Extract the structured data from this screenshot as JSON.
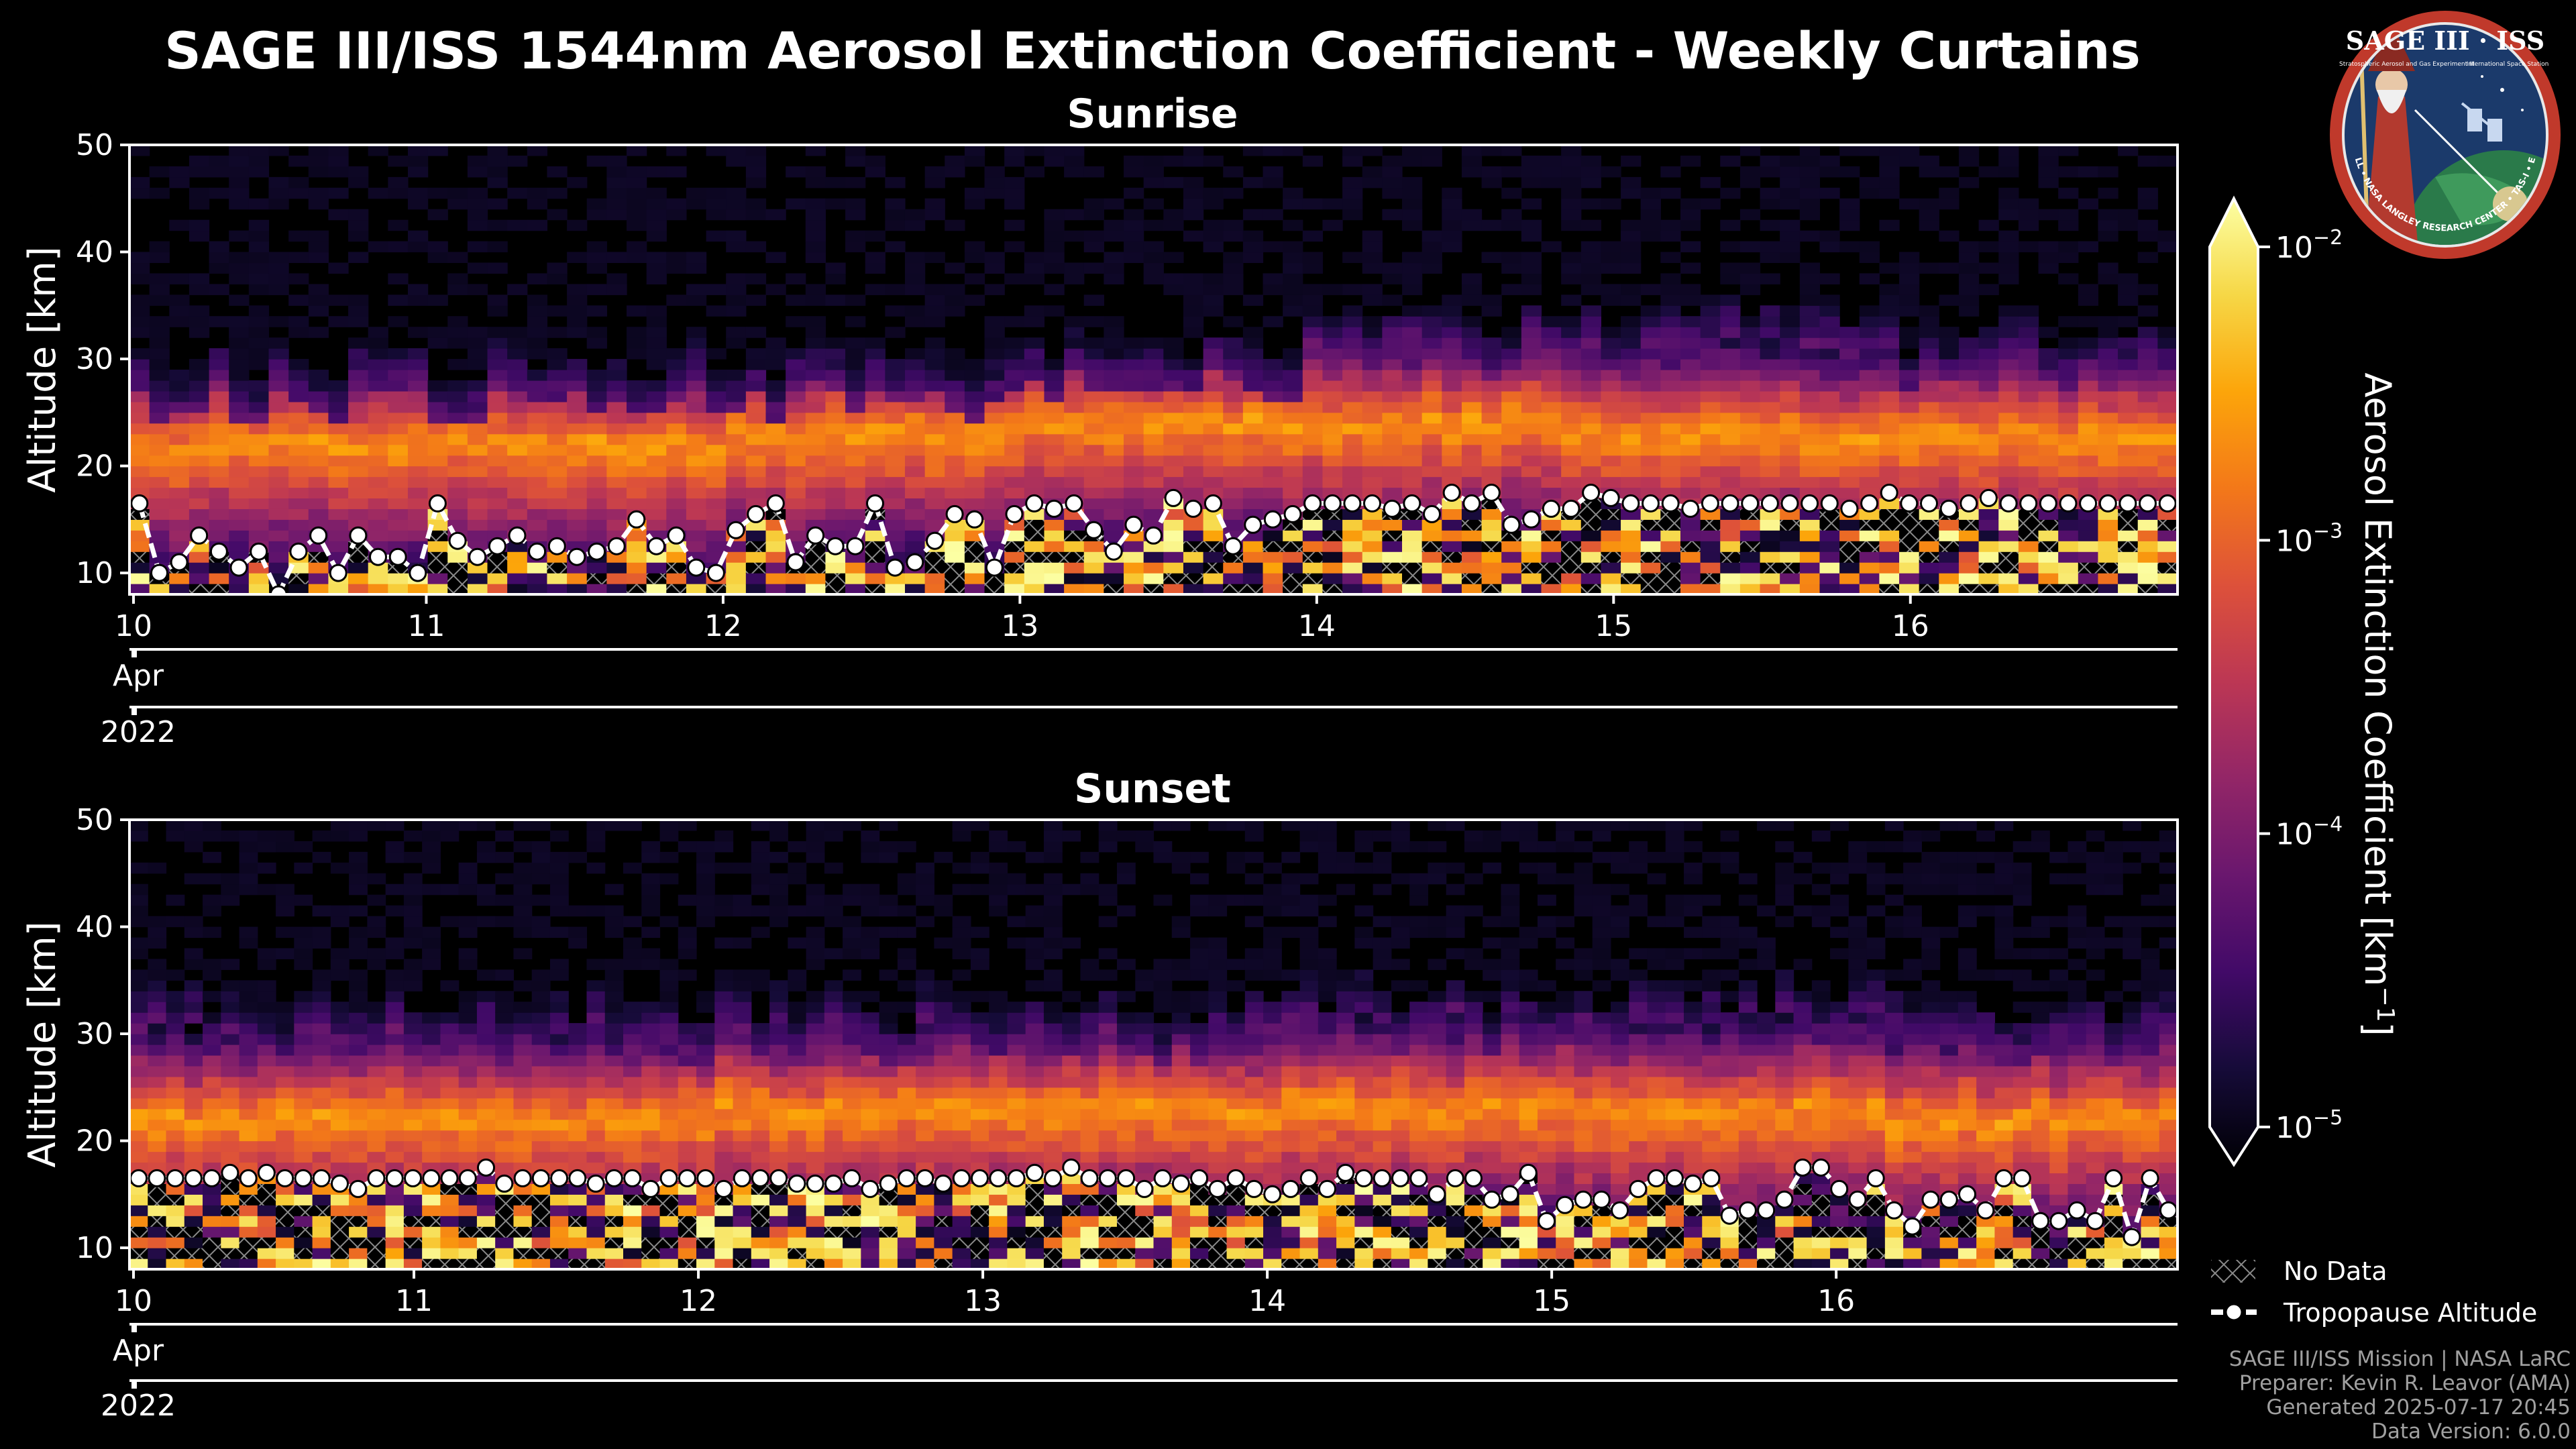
{
  "chart_data": {
    "type": "heatmap",
    "title": "SAGE III/ISS 1544nm Aerosol Extinction Coefficient - Weekly Curtains",
    "panels": [
      {
        "title": "Sunrise",
        "ylabel": "Altitude [km]",
        "ylim": [
          8,
          50
        ],
        "yticks": [
          10,
          20,
          30,
          40,
          50
        ],
        "xlim": [
          10,
          16.9
        ],
        "xticks": [
          {
            "value": 10,
            "label": "10"
          },
          {
            "value": 11,
            "label": "11"
          },
          {
            "value": 12,
            "label": "12"
          },
          {
            "value": 13,
            "label": "13"
          },
          {
            "value": 14,
            "label": "14"
          },
          {
            "value": 15,
            "label": "15"
          },
          {
            "value": 16,
            "label": "16"
          }
        ],
        "month_label": "Apr",
        "year_label": "2022",
        "aerosol_layer": {
          "top_km": [
            26,
            26,
            26,
            28,
            30,
            30,
            29
          ],
          "peak_km": [
            22,
            22,
            23,
            24,
            24,
            23,
            23
          ],
          "note": "per day 10..16"
        },
        "tropopause_altitude_km": [
          16.5,
          10,
          11,
          13.5,
          12,
          10.5,
          12,
          8,
          12,
          13.5,
          10,
          13.5,
          11.5,
          11.5,
          10,
          16.5,
          13,
          11.5,
          12.5,
          13.5,
          12,
          12.5,
          11.5,
          12,
          12.5,
          15,
          12.5,
          13.5,
          10.5,
          10,
          14,
          15.5,
          16.5,
          11,
          13.5,
          12.5,
          12.5,
          16.5,
          10.5,
          11,
          13,
          15.5,
          15,
          10.5,
          15.5,
          16.5,
          16,
          16.5,
          14,
          12,
          14.5,
          13.5,
          17,
          16,
          16.5,
          12.5,
          14.5,
          15,
          15.5,
          16.5,
          16.5,
          16.5,
          16.5,
          16,
          16.5,
          15.5,
          17.5,
          16.5,
          17.5,
          14.5,
          15,
          16,
          16,
          17.5,
          17,
          16.5,
          16.5,
          16.5,
          16,
          16.5,
          16.5,
          16.5,
          16.5,
          16.5,
          16.5,
          16.5,
          16,
          16.5,
          17.5,
          16.5,
          16.5,
          16,
          16.5,
          17,
          16.5,
          16.5,
          16.5,
          16.5,
          16.5,
          16.5,
          16.5,
          16.5,
          16.5
        ]
      },
      {
        "title": "Sunset",
        "ylabel": "Altitude [km]",
        "ylim": [
          8,
          50
        ],
        "yticks": [
          10,
          20,
          30,
          40,
          50
        ],
        "xlim": [
          10,
          17.2
        ],
        "xticks": [
          {
            "value": 10,
            "label": "10"
          },
          {
            "value": 11,
            "label": "11"
          },
          {
            "value": 12,
            "label": "12"
          },
          {
            "value": 13,
            "label": "13"
          },
          {
            "value": 14,
            "label": "14"
          },
          {
            "value": 15,
            "label": "15"
          },
          {
            "value": 16,
            "label": "16"
          }
        ],
        "month_label": "Apr",
        "year_label": "2022",
        "aerosol_layer": {
          "top_km": [
            29,
            29,
            29,
            29,
            30,
            30,
            29
          ],
          "peak_km": [
            22,
            22,
            23,
            23,
            23,
            23,
            22
          ],
          "note": "per day 10..16"
        },
        "tropopause_altitude_km": [
          16.5,
          16.5,
          16.5,
          16.5,
          16.5,
          17,
          16.5,
          17,
          16.5,
          16.5,
          16.5,
          16,
          15.5,
          16.5,
          16.5,
          16.5,
          16.5,
          16.5,
          16.5,
          17.5,
          16,
          16.5,
          16.5,
          16.5,
          16.5,
          16,
          16.5,
          16.5,
          15.5,
          16.5,
          16.5,
          16.5,
          15.5,
          16.5,
          16.5,
          16.5,
          16,
          16,
          16,
          16.5,
          15.5,
          16,
          16.5,
          16.5,
          16,
          16.5,
          16.5,
          16.5,
          16.5,
          17,
          16.5,
          17.5,
          16.5,
          16.5,
          16.5,
          15.5,
          16.5,
          16,
          16.5,
          15.5,
          16.5,
          15.5,
          15,
          15.5,
          16.5,
          15.5,
          17,
          16.5,
          16.5,
          16.5,
          16.5,
          15,
          16.5,
          16.5,
          14.5,
          15,
          17,
          12.5,
          14,
          14.5,
          14.5,
          13.5,
          15.5,
          16.5,
          16.5,
          16,
          16.5,
          13,
          13.5,
          13.5,
          14.5,
          17.5,
          17.5,
          15.5,
          14.5,
          16.5,
          13.5,
          12,
          14.5,
          14.5,
          15,
          13.5,
          16.5,
          16.5,
          12.5,
          12.5,
          13.5,
          12.5,
          16.5,
          11,
          16.5,
          13.5
        ]
      }
    ],
    "colorbar": {
      "label": "Aerosol Extinction Coefficient [km",
      "label_exponent": "−1",
      "label_close": "]",
      "scale": "log",
      "range": [
        1e-05,
        0.01
      ],
      "colormap": "inferno",
      "ticks": [
        {
          "value": 0.01,
          "base": "10",
          "exp": "−2"
        },
        {
          "value": 0.001,
          "base": "10",
          "exp": "−3"
        },
        {
          "value": 0.0001,
          "base": "10",
          "exp": "−4"
        },
        {
          "value": 1e-05,
          "base": "10",
          "exp": "−5"
        }
      ],
      "extend": "both"
    },
    "legend": {
      "position": "lower-right",
      "entries": [
        {
          "label": "No Data",
          "style": "hatch"
        },
        {
          "label": "Tropopause Altitude",
          "style": "dashed-line-circle-markers"
        }
      ]
    }
  },
  "logo": {
    "title": "SAGE III · ISS",
    "caption_left": "Stratospheric Aerosol and Gas Experiment III",
    "caption_right": "International Space Station",
    "ring_text": "BALL • NASA LANGLEY RESEARCH CENTER • TAS-I • ESA"
  },
  "footer": [
    "SAGE III/ISS Mission | NASA LaRC",
    "Preparer: Kevin R. Leavor (AMA)",
    "Generated 2025-07-17 20:45",
    "Data Version: 6.0.0"
  ]
}
